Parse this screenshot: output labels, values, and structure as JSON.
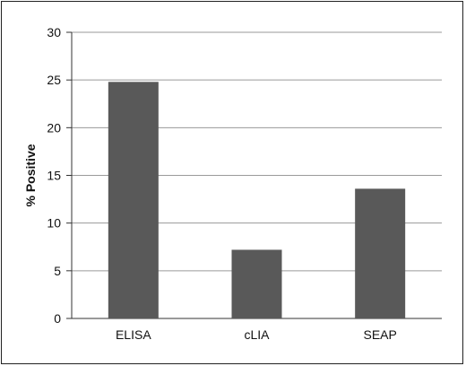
{
  "chart_data": {
    "type": "bar",
    "categories": [
      "ELISA",
      "cLIA",
      "SEAP"
    ],
    "values": [
      24.8,
      7.2,
      13.6
    ],
    "title": "",
    "xlabel": "",
    "ylabel": "% Positive",
    "ylim": [
      0,
      30
    ],
    "yticks": [
      0,
      5,
      10,
      15,
      20,
      25,
      30
    ],
    "ytick_labels": [
      "0",
      "5",
      "10",
      "15",
      "20",
      "25",
      "30"
    ],
    "grid": "horizontal",
    "colors": {
      "bar": "#595959",
      "grid": "#9a9a9a",
      "axis": "#333333"
    }
  }
}
